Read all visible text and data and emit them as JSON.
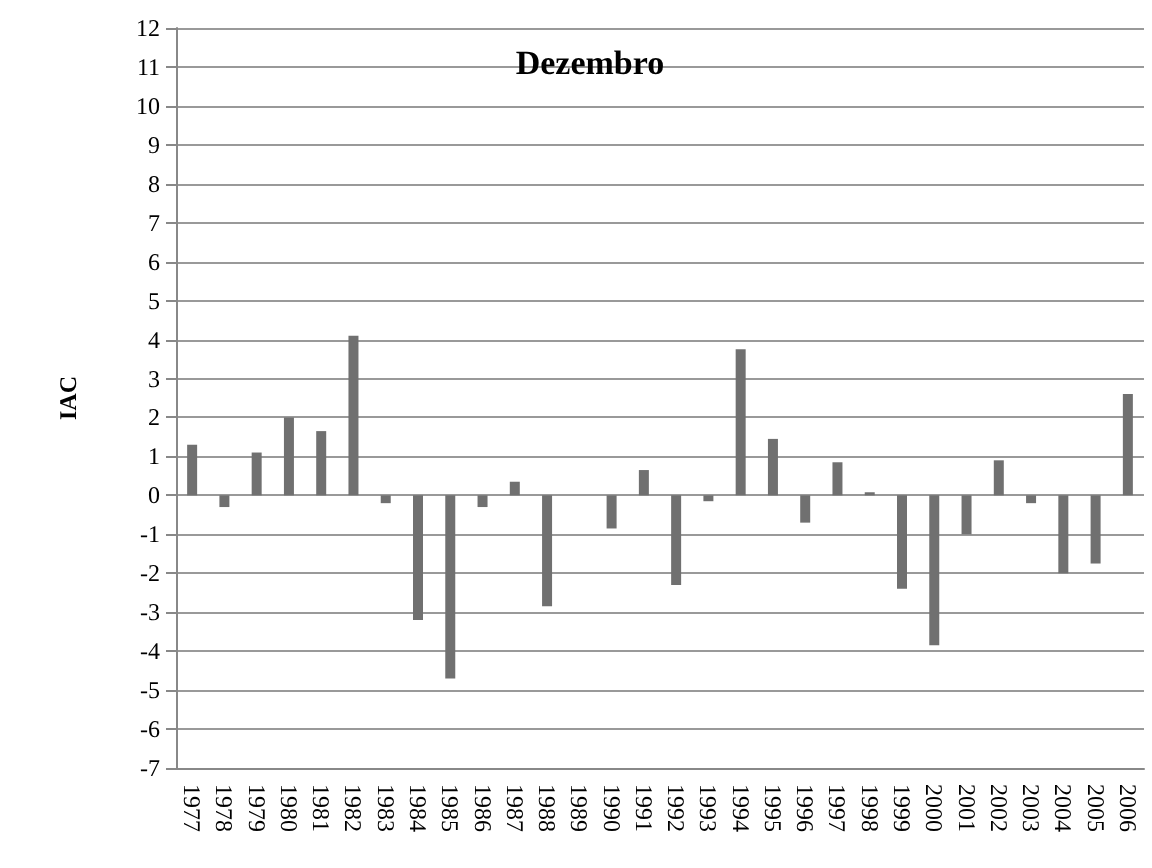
{
  "chart_data": {
    "type": "bar",
    "title": "Dezembro",
    "ylabel": "IAC",
    "categories": [
      "1977",
      "1978",
      "1979",
      "1980",
      "1981",
      "1982",
      "1983",
      "1984",
      "1985",
      "1986",
      "1987",
      "1988",
      "1989",
      "1990",
      "1991",
      "1992",
      "1993",
      "1994",
      "1995",
      "1996",
      "1997",
      "1998",
      "1999",
      "2000",
      "2001",
      "2002",
      "2003",
      "2004",
      "2005",
      "2006"
    ],
    "values": [
      1.3,
      -0.3,
      1.1,
      2.0,
      1.65,
      4.1,
      -0.2,
      -3.2,
      -4.7,
      -0.3,
      0.35,
      -2.85,
      0,
      -0.85,
      0.65,
      -2.3,
      -0.15,
      3.75,
      1.45,
      -0.7,
      0.85,
      0.08,
      -2.4,
      -3.85,
      -1.0,
      0.9,
      -0.2,
      -2.0,
      -1.75,
      2.6
    ],
    "color": "#707070",
    "ylim": [
      -7,
      12
    ],
    "yticks": [
      -7,
      -6,
      -5,
      -4,
      -3,
      -2,
      -1,
      0,
      1,
      2,
      3,
      4,
      5,
      6,
      7,
      8,
      9,
      10,
      11,
      12
    ],
    "grid": "y"
  }
}
